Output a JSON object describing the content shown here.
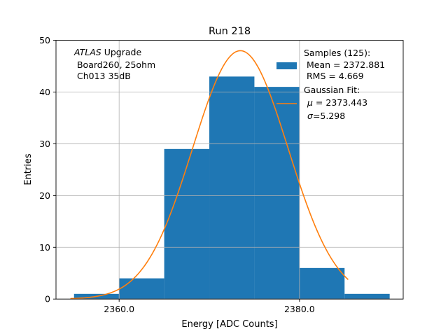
{
  "chart_data": {
    "type": "bar",
    "title": "Run 218",
    "xlabel": "Energy [ADC Counts]",
    "ylabel": "Entries",
    "xlim": [
      2353.0,
      2391.5
    ],
    "ylim": [
      0,
      50
    ],
    "x_ticks": [
      2360.0,
      2380.0
    ],
    "x_tick_labels": [
      "2360.0",
      "2380.0"
    ],
    "y_ticks": [
      0,
      10,
      20,
      30,
      40,
      50
    ],
    "grid": true,
    "histogram": {
      "name": "Samples (125):",
      "color": "#1f77b4",
      "bin_edges": [
        2355.0,
        2360.0,
        2365.0,
        2370.0,
        2375.0,
        2380.0,
        2385.0,
        2390.0
      ],
      "counts": [
        1,
        4,
        29,
        43,
        41,
        6,
        1
      ]
    },
    "fit": {
      "name": "Gaussian Fit:",
      "color": "#ff7f0e",
      "type": "gaussian",
      "mu": 2373.443,
      "sigma": 5.298,
      "amplitude": 48.0,
      "x_range": [
        2354.6,
        2385.4
      ]
    },
    "annotation": {
      "italic": "ATLAS",
      "rest": " Upgrade",
      "lines": [
        " Board260, 25ohm",
        " Ch013 35dB"
      ]
    },
    "legend": {
      "placement": "upper right",
      "hist_lines": [
        "Samples (125):",
        " Mean = 2372.881",
        " RMS = 4.669"
      ],
      "fit_title": "Gaussian Fit:",
      "fit_mu_sym": "μ",
      "fit_mu_text": " = 2373.443",
      "fit_sigma_sym": "σ",
      "fit_sigma_text": "=5.298"
    }
  }
}
